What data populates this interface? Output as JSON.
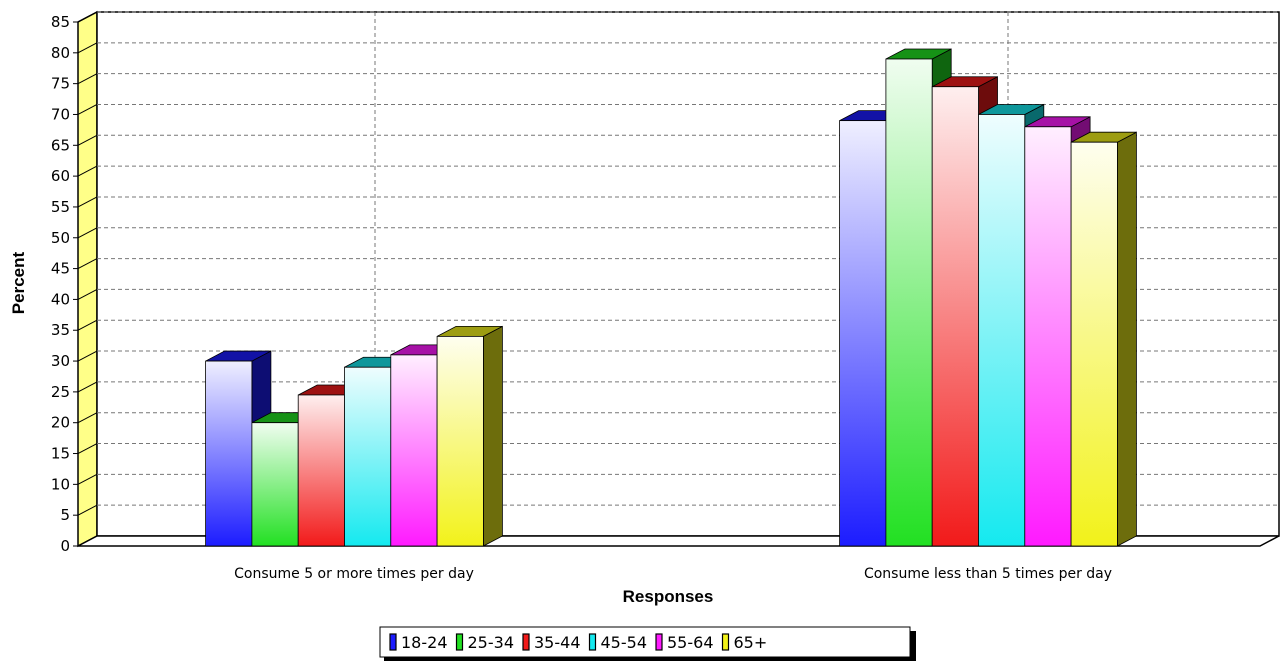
{
  "chart_data": {
    "type": "bar",
    "xlabel": "Responses",
    "ylabel": "Percent",
    "ylim": [
      0,
      85
    ],
    "ytick_step": 5,
    "grid": true,
    "legend_position": "bottom",
    "categories": [
      "Consume 5 or more times per day",
      "Consume less than 5 times per day"
    ],
    "series": [
      {
        "name": "18-24",
        "color": "#1c1cff",
        "values": [
          30,
          69
        ]
      },
      {
        "name": "25-34",
        "color": "#22e022",
        "values": [
          20,
          79
        ]
      },
      {
        "name": "35-44",
        "color": "#f21a1a",
        "values": [
          24.5,
          74.5
        ]
      },
      {
        "name": "45-54",
        "color": "#15e9ef",
        "values": [
          29,
          70
        ]
      },
      {
        "name": "55-64",
        "color": "#ff1aff",
        "values": [
          31,
          68
        ]
      },
      {
        "name": "65+",
        "color": "#f2f21a",
        "values": [
          34,
          65.5
        ]
      }
    ]
  }
}
